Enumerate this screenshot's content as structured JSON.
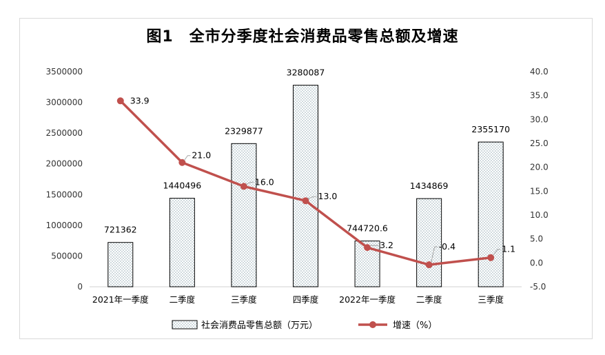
{
  "chart_data": {
    "type": "bar+line",
    "title": "图1　全市分季度社会消费品零售总额及增速",
    "categories": [
      "2021年一季度",
      "二季度",
      "三季度",
      "四季度",
      "2022年一季度",
      "二季度",
      "三季度"
    ],
    "series": [
      {
        "name": "社会消费品零售总额（万元）",
        "type": "bar",
        "axis": "left",
        "values": [
          721362,
          1440496,
          2329877,
          3280087,
          744720.6,
          1434869,
          2355170
        ],
        "labels": [
          "721362",
          "1440496",
          "2329877",
          "3280087",
          "744720.6",
          "1434869",
          "2355170"
        ]
      },
      {
        "name": "增速（%）",
        "type": "line",
        "axis": "right",
        "values": [
          33.9,
          21.0,
          16.0,
          13.0,
          3.2,
          -0.4,
          1.1
        ],
        "labels": [
          "33.9",
          "21.0",
          "16.0",
          "13.0",
          "3.2",
          "-0.4",
          "1.1"
        ]
      }
    ],
    "y_left": {
      "min": 0,
      "max": 3500000,
      "step": 500000,
      "ticks": [
        "0",
        "500000",
        "1000000",
        "1500000",
        "2000000",
        "2500000",
        "3000000",
        "3500000"
      ]
    },
    "y_right": {
      "min": -5,
      "max": 40,
      "step": 5,
      "ticks": [
        "-5.0",
        "0.0",
        "5.0",
        "10.0",
        "15.0",
        "20.0",
        "25.0",
        "30.0",
        "35.0",
        "40.0"
      ]
    },
    "grid": false,
    "legend_position": "bottom",
    "colors": {
      "line": "#c0504d",
      "bar_border": "#000000",
      "bar_dots": "#5a7f8c"
    }
  }
}
